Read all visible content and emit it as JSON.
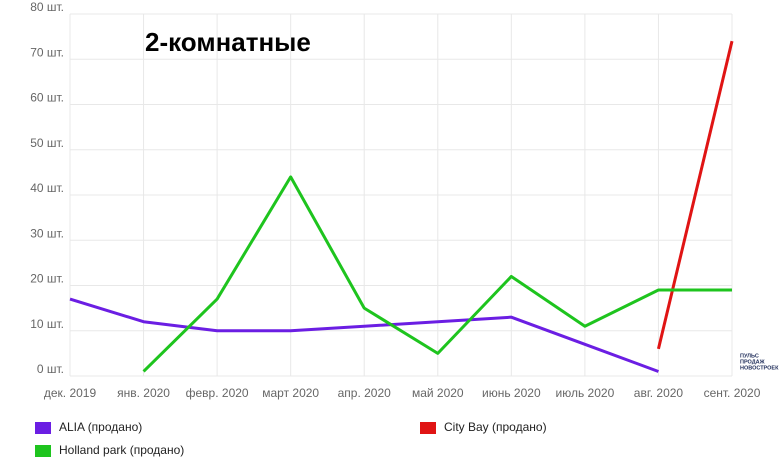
{
  "chart_data": {
    "type": "line",
    "title": "2-комнатные",
    "categories": [
      "дек. 2019",
      "янв. 2020",
      "февр. 2020",
      "март 2020",
      "апр. 2020",
      "май 2020",
      "июнь 2020",
      "июль 2020",
      "авг. 2020",
      "сент. 2020"
    ],
    "series": [
      {
        "name": "ALIA (продано)",
        "color": "#6b1ee3",
        "values": [
          17,
          12,
          10,
          10,
          11,
          12,
          13,
          7,
          1,
          null
        ]
      },
      {
        "name": "City Bay (продано)",
        "color": "#e01414",
        "values": [
          null,
          null,
          null,
          null,
          null,
          null,
          null,
          null,
          6,
          74
        ]
      },
      {
        "name": "Holland park (продано)",
        "color": "#1ec41e",
        "values": [
          null,
          1,
          17,
          44,
          15,
          5,
          22,
          11,
          19,
          19
        ]
      }
    ],
    "ylim": [
      0,
      80
    ],
    "yticks": [
      {
        "value": 0,
        "label": "0 шт."
      },
      {
        "value": 10,
        "label": "10 шт."
      },
      {
        "value": 20,
        "label": "20 шт."
      },
      {
        "value": 30,
        "label": "30 шт."
      },
      {
        "value": 40,
        "label": "40 шт."
      },
      {
        "value": 50,
        "label": "50 шт."
      },
      {
        "value": 60,
        "label": "60 шт."
      },
      {
        "value": 70,
        "label": "70 шт."
      },
      {
        "value": 80,
        "label": "80 шт."
      }
    ],
    "grid": true,
    "annotations": [
      "ПУЛЬС",
      "ПРОДАЖ",
      "НОВОСТРОЕК"
    ]
  }
}
